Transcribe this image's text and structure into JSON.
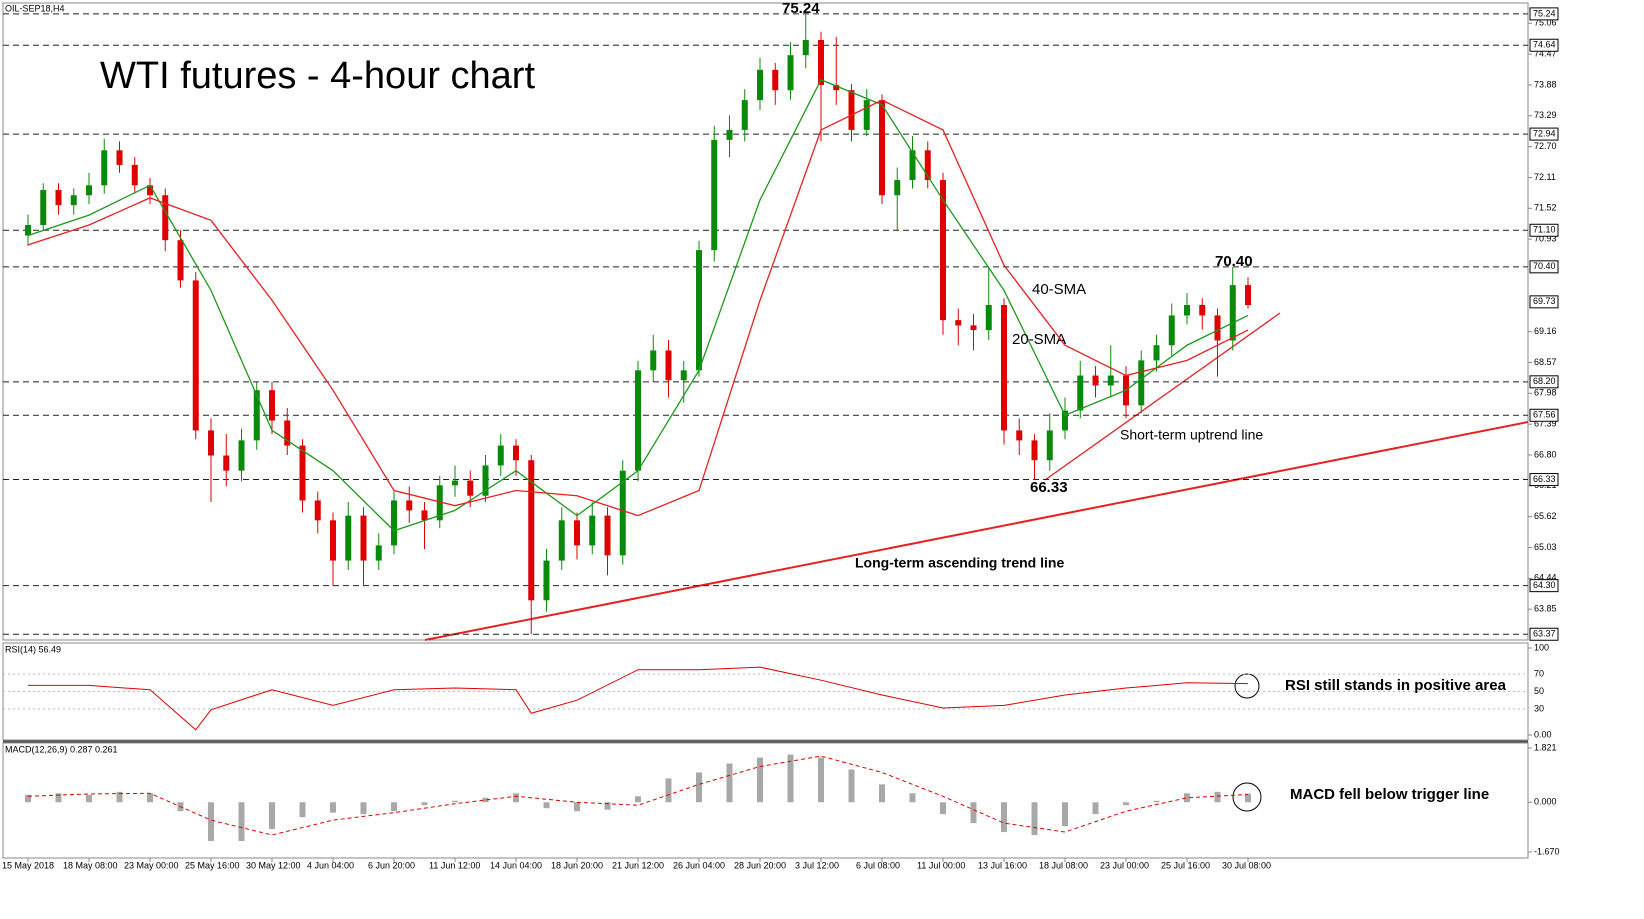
{
  "chart_data": {
    "type": "candlestick",
    "title": "WTI futures - 4-hour chart",
    "symbol": "OIL-SEP18,H4",
    "up_color": "#0a8a0a",
    "down_color": "#e00000",
    "categories": [
      "15 May 2018",
      null,
      null,
      null,
      "18 May 08:00",
      null,
      null,
      null,
      "23 May 00:00",
      null,
      null,
      null,
      "25 May 16:00",
      null,
      null,
      null,
      "30 May 12:00",
      null,
      null,
      null,
      "4 Jun 04:00",
      null,
      null,
      null,
      "6 Jun 20:00",
      null,
      null,
      null,
      "11 Jun 12:00",
      null,
      null,
      null,
      "14 Jun 04:00",
      null,
      null,
      null,
      "18 Jun 20:00",
      null,
      null,
      null,
      "21 Jun 12:00",
      null,
      null,
      null,
      "26 Jun 04:00",
      null,
      null,
      null,
      "28 Jun 20:00",
      null,
      null,
      null,
      "3 Jul 12:00",
      null,
      null,
      null,
      "6 Jul 08:00",
      null,
      null,
      null,
      "11 Jul 00:00",
      null,
      null,
      null,
      "13 Jul 16:00",
      null,
      null,
      null,
      "18 Jul 08:00",
      null,
      null,
      null,
      "23 Jul 00:00",
      null,
      null,
      null,
      "25 Jul 16:00",
      null,
      null,
      null,
      "30 Jul 08:00"
    ],
    "ohlc": [
      [
        71.0,
        71.4,
        70.8,
        71.2
      ],
      [
        71.2,
        72.0,
        71.1,
        71.87
      ],
      [
        71.87,
        72.0,
        71.4,
        71.58
      ],
      [
        71.58,
        71.9,
        71.4,
        71.77
      ],
      [
        71.77,
        72.2,
        71.6,
        71.96
      ],
      [
        71.96,
        72.85,
        71.8,
        72.63
      ],
      [
        72.63,
        72.8,
        72.2,
        72.35
      ],
      [
        72.35,
        72.5,
        71.8,
        71.96
      ],
      [
        71.96,
        72.1,
        71.6,
        71.77
      ],
      [
        71.77,
        71.9,
        70.7,
        70.91
      ],
      [
        70.91,
        71.1,
        70.0,
        70.14
      ],
      [
        70.14,
        70.3,
        67.1,
        67.27
      ],
      [
        67.27,
        67.5,
        65.9,
        66.79
      ],
      [
        66.79,
        67.2,
        66.2,
        66.5
      ],
      [
        66.5,
        67.3,
        66.3,
        67.08
      ],
      [
        67.08,
        68.2,
        66.9,
        68.04
      ],
      [
        68.04,
        68.2,
        67.2,
        67.46
      ],
      [
        67.46,
        67.7,
        66.8,
        66.98
      ],
      [
        66.98,
        67.1,
        65.7,
        65.93
      ],
      [
        65.93,
        66.1,
        65.3,
        65.55
      ],
      [
        65.55,
        65.7,
        64.3,
        64.78
      ],
      [
        64.78,
        65.9,
        64.6,
        65.64
      ],
      [
        65.64,
        65.8,
        64.3,
        64.78
      ],
      [
        64.78,
        65.3,
        64.6,
        65.07
      ],
      [
        65.07,
        66.1,
        64.9,
        65.93
      ],
      [
        65.93,
        66.2,
        65.5,
        65.74
      ],
      [
        65.74,
        65.9,
        65.0,
        65.55
      ],
      [
        65.55,
        66.4,
        65.4,
        66.22
      ],
      [
        66.22,
        66.6,
        66.0,
        66.31
      ],
      [
        66.31,
        66.5,
        65.8,
        66.02
      ],
      [
        66.02,
        66.8,
        65.9,
        66.6
      ],
      [
        66.6,
        67.2,
        66.4,
        66.98
      ],
      [
        66.98,
        67.1,
        66.4,
        66.7
      ],
      [
        66.7,
        66.8,
        63.37,
        64.02
      ],
      [
        64.02,
        65.0,
        63.8,
        64.78
      ],
      [
        64.78,
        65.8,
        64.6,
        65.55
      ],
      [
        65.55,
        65.7,
        64.8,
        65.07
      ],
      [
        65.07,
        65.9,
        64.9,
        65.64
      ],
      [
        65.64,
        65.8,
        64.5,
        64.88
      ],
      [
        64.88,
        66.7,
        64.7,
        66.5
      ],
      [
        66.5,
        68.6,
        66.3,
        68.42
      ],
      [
        68.42,
        69.1,
        68.2,
        68.8
      ],
      [
        68.8,
        69.0,
        67.9,
        68.23
      ],
      [
        68.23,
        68.6,
        67.8,
        68.42
      ],
      [
        68.42,
        70.9,
        68.3,
        70.72
      ],
      [
        70.72,
        73.1,
        70.5,
        72.83
      ],
      [
        72.83,
        73.3,
        72.5,
        73.02
      ],
      [
        73.02,
        73.8,
        72.8,
        73.59
      ],
      [
        73.59,
        74.4,
        73.4,
        74.17
      ],
      [
        74.17,
        74.3,
        73.5,
        73.78
      ],
      [
        73.78,
        74.7,
        73.6,
        74.45
      ],
      [
        74.45,
        75.24,
        74.2,
        74.74
      ],
      [
        74.74,
        74.9,
        72.8,
        73.88
      ],
      [
        73.88,
        74.8,
        73.5,
        73.78
      ],
      [
        73.78,
        73.9,
        72.8,
        73.02
      ],
      [
        73.02,
        73.8,
        72.9,
        73.59
      ],
      [
        73.59,
        73.7,
        71.6,
        71.77
      ],
      [
        71.77,
        72.3,
        71.1,
        72.06
      ],
      [
        72.06,
        72.9,
        71.9,
        72.63
      ],
      [
        72.63,
        72.8,
        71.9,
        72.06
      ],
      [
        72.06,
        72.2,
        69.1,
        69.38
      ],
      [
        69.38,
        69.6,
        68.9,
        69.28
      ],
      [
        69.28,
        69.5,
        68.8,
        69.19
      ],
      [
        69.19,
        70.4,
        69.0,
        69.67
      ],
      [
        69.67,
        69.8,
        67.0,
        67.27
      ],
      [
        67.27,
        67.5,
        66.8,
        67.08
      ],
      [
        67.08,
        67.2,
        66.33,
        66.7
      ],
      [
        66.7,
        67.6,
        66.5,
        67.27
      ],
      [
        67.27,
        67.9,
        67.1,
        67.65
      ],
      [
        67.65,
        68.6,
        67.5,
        68.32
      ],
      [
        68.32,
        68.5,
        67.9,
        68.13
      ],
      [
        68.13,
        68.9,
        67.9,
        68.32
      ],
      [
        68.32,
        68.5,
        67.5,
        67.75
      ],
      [
        67.75,
        68.8,
        67.6,
        68.61
      ],
      [
        68.61,
        69.1,
        68.4,
        68.9
      ],
      [
        68.9,
        69.7,
        68.7,
        69.47
      ],
      [
        69.47,
        69.9,
        69.3,
        69.67
      ],
      [
        69.67,
        69.8,
        69.2,
        69.47
      ],
      [
        69.47,
        69.6,
        68.3,
        68.99
      ],
      [
        68.99,
        70.4,
        68.8,
        70.05
      ],
      [
        70.05,
        70.2,
        69.6,
        69.67
      ]
    ],
    "series": [
      {
        "name": "20-SMA",
        "color": "#1a9a1a",
        "x": [
          0,
          4,
          8,
          12,
          16,
          20,
          24,
          28,
          32,
          36,
          40,
          44,
          48,
          52,
          56,
          60,
          64,
          68,
          72,
          76,
          80
        ],
        "values": [
          71.0,
          71.39,
          71.96,
          69.95,
          67.27,
          66.5,
          65.35,
          65.74,
          66.5,
          65.64,
          66.5,
          68.42,
          71.68,
          73.98,
          73.5,
          71.68,
          69.95,
          67.56,
          68.04,
          68.9,
          69.47
        ]
      },
      {
        "name": "40-SMA",
        "color": "#e82020",
        "x": [
          0,
          4,
          8,
          12,
          16,
          20,
          24,
          28,
          32,
          36,
          40,
          44,
          48,
          52,
          56,
          60,
          64,
          68,
          72,
          76,
          80
        ],
        "values": [
          70.82,
          71.2,
          71.72,
          71.29,
          69.76,
          68.04,
          66.12,
          65.83,
          66.12,
          66.02,
          65.64,
          66.12,
          69.76,
          73.02,
          73.59,
          73.02,
          70.43,
          68.9,
          68.32,
          68.61,
          69.19
        ]
      }
    ],
    "ylim": [
      63.26,
      75.41
    ],
    "yticks": [
      75.06,
      74.47,
      73.88,
      73.29,
      {
        "value": 72.7,
        "label": "72.70"
      },
      72.11,
      71.52,
      70.93,
      69.16,
      68.57,
      67.98,
      67.39,
      {
        "value": 66.8,
        "label": "66.80"
      },
      66.21,
      65.62,
      65.03,
      64.44,
      63.85
    ],
    "levels": [
      75.24,
      74.64,
      72.94,
      {
        "value": 71.1,
        "label": "71.10"
      },
      {
        "value": 70.4,
        "label": "70.40"
      },
      {
        "value": 68.2,
        "label": "68.20"
      },
      67.56,
      66.33,
      {
        "value": 64.3,
        "label": "64.30"
      },
      63.37
    ],
    "last_price": 69.73,
    "annotations": [
      "75.24",
      "70.40",
      "66.33",
      "Long-term ascending trend line",
      "Short-term uptrend line"
    ],
    "rsi": {
      "title": "RSI(14) 56.49",
      "color": "#e00000",
      "note": "RSI still stands in positive area",
      "ylim": [
        0,
        100
      ],
      "yticks": [
        100,
        70,
        50,
        30,
        {
          "value": 0,
          "label": "0.00"
        }
      ],
      "x": [
        0,
        4,
        8,
        11,
        12,
        16,
        20,
        24,
        28,
        32,
        33,
        36,
        40,
        44,
        48,
        52,
        56,
        60,
        64,
        68,
        72,
        76,
        80
      ],
      "values": [
        57,
        57,
        52,
        6,
        29,
        52,
        34,
        52,
        54,
        52,
        25,
        40,
        75,
        75,
        78,
        63,
        46,
        31,
        34,
        46,
        54,
        60,
        59
      ]
    },
    "macd": {
      "title": "MACD(12,26,9) 0.287 0.261",
      "hist_color": "#a8a8a8",
      "signal_color": "#e00000",
      "note": "MACD fell below trigger line",
      "ylim": [
        -1.67,
        1.821
      ],
      "yticks": [
        1.821,
        {
          "value": 0,
          "label": "0.000"
        },
        {
          "value": -1.67,
          "label": "-1.670"
        }
      ],
      "hist_x": [
        0,
        2,
        4,
        6,
        8,
        10,
        12,
        14,
        16,
        18,
        20,
        22,
        24,
        26,
        28,
        30,
        32,
        34,
        36,
        38,
        40,
        42,
        44,
        46,
        48,
        50,
        52,
        54,
        56,
        58,
        60,
        62,
        64,
        66,
        68,
        70,
        72,
        74,
        76,
        78,
        80
      ],
      "hist": [
        0.25,
        0.3,
        0.25,
        0.35,
        0.3,
        -0.3,
        -1.3,
        -1.3,
        -0.9,
        -0.5,
        -0.35,
        -0.4,
        -0.3,
        -0.1,
        0.05,
        0.15,
        0.3,
        -0.2,
        -0.3,
        -0.25,
        0.2,
        0.8,
        1.0,
        1.3,
        1.5,
        1.6,
        1.5,
        1.1,
        0.6,
        0.3,
        -0.4,
        -0.7,
        -1.0,
        -1.1,
        -0.8,
        -0.4,
        -0.1,
        0.05,
        0.3,
        0.35,
        0.29
      ],
      "signal_x": [
        0,
        4,
        8,
        12,
        16,
        20,
        24,
        28,
        32,
        36,
        40,
        44,
        48,
        52,
        56,
        60,
        64,
        68,
        72,
        76,
        80
      ],
      "signal": [
        0.2,
        0.28,
        0.3,
        -0.6,
        -1.1,
        -0.6,
        -0.35,
        -0.05,
        0.2,
        0.0,
        -0.1,
        0.6,
        1.2,
        1.55,
        1.0,
        0.2,
        -0.7,
        -1.0,
        -0.3,
        0.15,
        0.26
      ]
    }
  }
}
